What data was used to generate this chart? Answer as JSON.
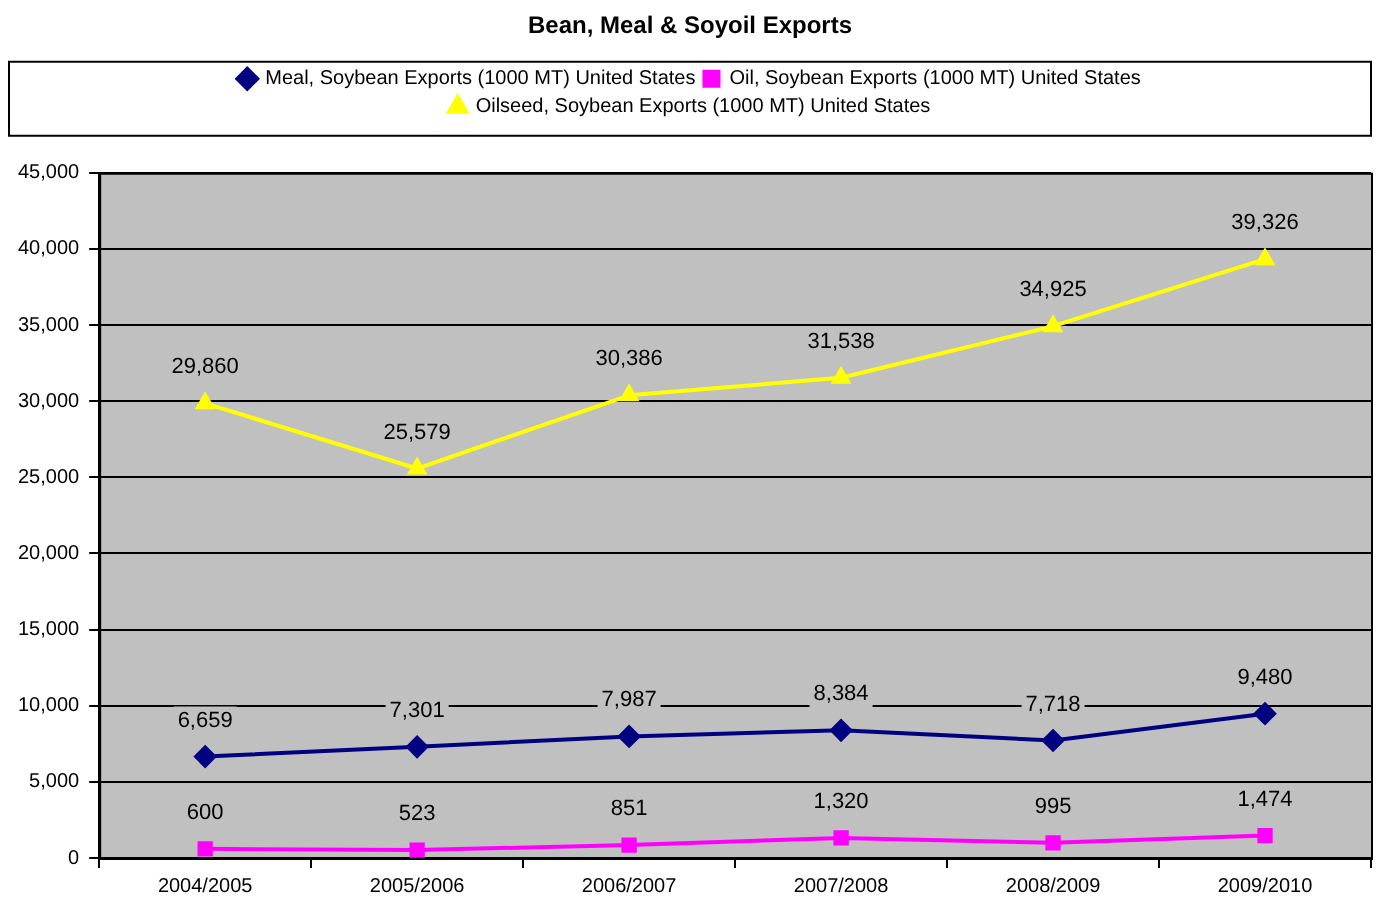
{
  "chart_data": {
    "type": "line",
    "title": "Bean, Meal & Soyoil Exports",
    "categories": [
      "2004/2005",
      "2005/2006",
      "2006/2007",
      "2007/2008",
      "2008/2009",
      "2009/2010"
    ],
    "series": [
      {
        "name": "Meal, Soybean Exports (1000 MT) United States",
        "color": "#000080",
        "marker": "diamond",
        "values": [
          6659,
          7301,
          7987,
          8384,
          7718,
          9480
        ],
        "value_labels": [
          "6,659",
          "7,301",
          "7,987",
          "8,384",
          "7,718",
          "9,480"
        ]
      },
      {
        "name": "Oil, Soybean Exports (1000 MT) United States",
        "color": "#ff00ff",
        "marker": "square",
        "values": [
          600,
          523,
          851,
          1320,
          995,
          1474
        ],
        "value_labels": [
          "600",
          "523",
          "851",
          "1,320",
          "995",
          "1,474"
        ]
      },
      {
        "name": "Oilseed, Soybean Exports (1000 MT) United States",
        "color": "#ffff00",
        "marker": "triangle",
        "values": [
          29860,
          25579,
          30386,
          31538,
          34925,
          39326
        ],
        "value_labels": [
          "29,860",
          "25,579",
          "30,386",
          "31,538",
          "34,925",
          "39,326"
        ]
      }
    ],
    "ylim": [
      0,
      45000
    ],
    "yticks": [
      0,
      {
        "value": 5000,
        "label": "5,000"
      },
      {
        "value": 10000,
        "label": "10,000"
      },
      {
        "value": 15000,
        "label": "15,000"
      },
      {
        "value": 20000,
        "label": "20,000"
      },
      {
        "value": 25000,
        "label": "25,000"
      },
      {
        "value": 30000,
        "label": "30,000"
      },
      {
        "value": 35000,
        "label": "35,000"
      },
      {
        "value": 40000,
        "label": "40,000"
      },
      {
        "value": 45000,
        "label": "45,000"
      }
    ],
    "grid": "y",
    "legend": "top",
    "line_style": "solid"
  }
}
